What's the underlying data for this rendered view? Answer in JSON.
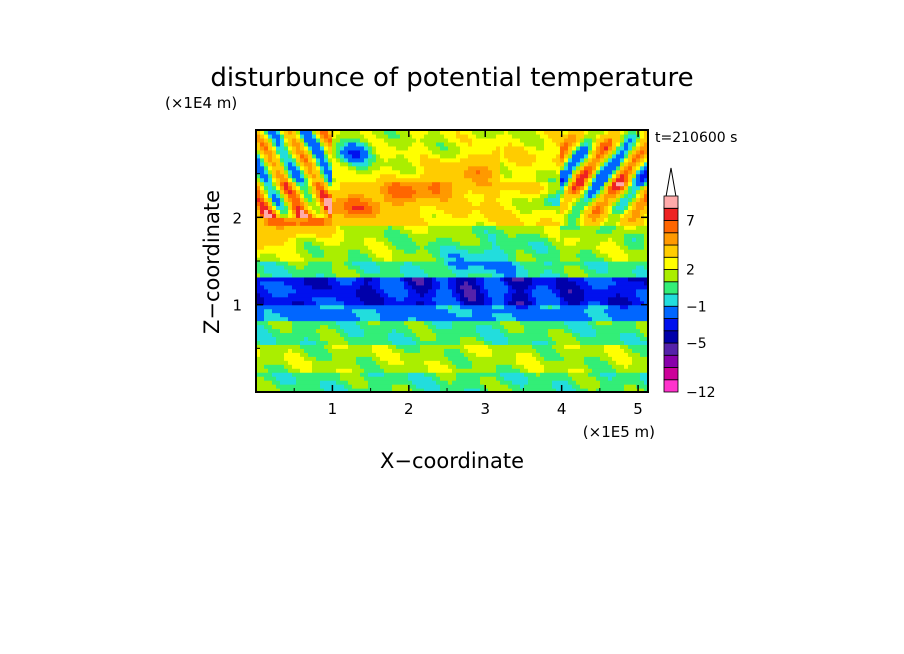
{
  "chart_data": {
    "type": "heatmap",
    "title": "disturbunce of potential temperature",
    "xlabel": "X−coordinate",
    "ylabel": "Z−coordinate",
    "x_unit": "(×1E5 m)",
    "y_unit": "(×1E4 m)",
    "time_label": "t=210600 s",
    "xlim": [
      0,
      5.13
    ],
    "ylim": [
      0,
      3.0
    ],
    "x_ticks": [
      1,
      2,
      3,
      4,
      5
    ],
    "x_tick_labels": [
      "1",
      "2",
      "3",
      "4",
      "5"
    ],
    "y_ticks": [
      1,
      2
    ],
    "y_tick_labels": [
      "1",
      "2"
    ],
    "colorbar": {
      "levels": [
        -12,
        -10,
        -8,
        -7,
        -5,
        -4,
        -3,
        -1,
        0,
        1,
        2,
        3,
        5,
        6,
        7,
        8,
        10
      ],
      "labels": [
        {
          "value": -12,
          "text": "−12"
        },
        {
          "value": -5,
          "text": "−5"
        },
        {
          "value": -1,
          "text": "−1"
        },
        {
          "value": 2,
          "text": "2"
        },
        {
          "value": 7,
          "text": "7"
        }
      ],
      "colors": [
        "#ff33cc",
        "#cc0099",
        "#8800aa",
        "#5522aa",
        "#0000aa",
        "#0011ee",
        "#0066ff",
        "#22dddd",
        "#33ee77",
        "#aaee00",
        "#ffff00",
        "#ffcc00",
        "#ff9900",
        "#ff6600",
        "#ee2222",
        "#ffaaaa"
      ],
      "extend": "max"
    },
    "bands": [
      {
        "z": [
          0.0,
          0.25
        ],
        "dominant": 0.5
      },
      {
        "z": [
          0.25,
          0.55
        ],
        "dominant": 1.5
      },
      {
        "z": [
          0.55,
          0.8
        ],
        "dominant": 0.5
      },
      {
        "z": [
          0.8,
          1.0
        ],
        "dominant": -1.5
      },
      {
        "z": [
          1.0,
          1.3
        ],
        "dominant": -3.5
      },
      {
        "z": [
          1.3,
          1.5
        ],
        "dominant": 0.5
      },
      {
        "z": [
          1.5,
          1.9
        ],
        "dominant": 1.5
      },
      {
        "z": [
          1.9,
          2.4
        ],
        "dominant": 3.0
      },
      {
        "z": [
          2.4,
          3.0
        ],
        "dominant": 2.0
      }
    ]
  }
}
